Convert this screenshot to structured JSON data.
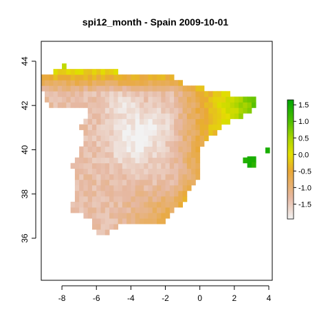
{
  "chart_data": {
    "type": "heatmap",
    "title": "spi12_month - Spain 2009-10-01",
    "xlabel": "",
    "ylabel": "",
    "xlim": [
      -9.2,
      4.2
    ],
    "ylim": [
      34.1,
      44.9
    ],
    "x_ticks": [
      -8,
      -6,
      -4,
      -2,
      0,
      2,
      4
    ],
    "y_ticks": [
      36,
      38,
      40,
      42,
      44
    ],
    "grid": false,
    "legend": {
      "position": "right",
      "ticks": [
        1.5,
        1.0,
        0.5,
        0.0,
        -0.5,
        -1.0,
        -1.5
      ],
      "tick_labels": [
        "1.5",
        "1.0",
        "0.5",
        "0.0",
        "-0.5",
        "-1.0",
        "-1.5"
      ],
      "range": [
        -1.95,
        1.65
      ]
    },
    "color_scale": [
      {
        "value": -1.95,
        "color": "#f2f2f2"
      },
      {
        "value": -1.3,
        "color": "#e6b8a2"
      },
      {
        "value": -0.5,
        "color": "#e9a836"
      },
      {
        "value": 0.0,
        "color": "#e3df00"
      },
      {
        "value": 0.5,
        "color": "#a8d400"
      },
      {
        "value": 1.0,
        "color": "#4fbf00"
      },
      {
        "value": 1.65,
        "color": "#00a600"
      }
    ],
    "grid_cell_deg": 0.25,
    "description_note": "",
    "points_rows": []
  }
}
